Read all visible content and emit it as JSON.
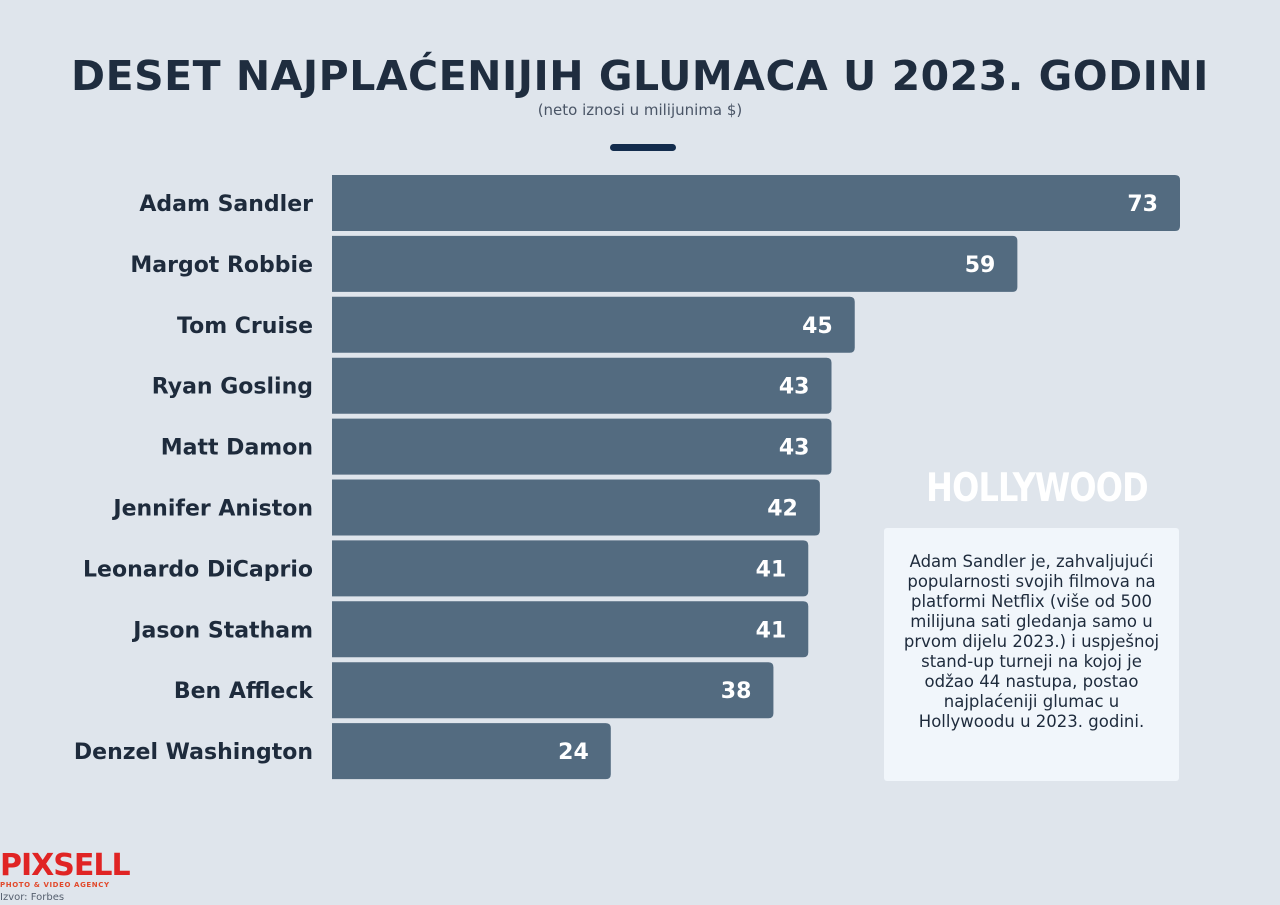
{
  "header": {
    "title": "DESET NAJPLAĆENIJIH GLUMACA U 2023. GODINI",
    "subtitle": "(neto iznosi u milijunima $)"
  },
  "chart_data": {
    "type": "bar",
    "orientation": "horizontal",
    "title": "DESET NAJPLAĆENIJIH GLUMACA U 2023. GODINI",
    "subtitle": "(neto iznosi u milijunima $)",
    "categories": [
      "Adam Sandler",
      "Margot Robbie",
      "Tom Cruise",
      "Ryan Gosling",
      "Matt Damon",
      "Jennifer Aniston",
      "Leonardo DiCaprio",
      "Jason Statham",
      "Ben Affleck",
      "Denzel Washington"
    ],
    "values": [
      73,
      59,
      45,
      43,
      43,
      42,
      41,
      41,
      38,
      24
    ],
    "xlim": [
      0,
      73
    ],
    "grid": false,
    "data_labels": true,
    "bar_color": "#536b80"
  },
  "watermark": "HOLLYWOOD",
  "note": "Adam Sandler je, zahvaljujući popularnosti svojih filmova na platformi Netflix (više od 500 milijuna sati gledanja samo u prvom dijelu 2023.) i uspješnoj stand-up turneji na kojoj je odžao 44 nastupa, postao najplaćeniji glumac u Hollywoodu u 2023. godini.",
  "branding": {
    "logo": "PIXSELL",
    "tagline": "PHOTO & VIDEO AGENCY",
    "source": "Izvor: Forbes"
  },
  "colors": {
    "background": "#dfe5ec",
    "bar": "#536b80",
    "title": "#1f2d3f",
    "accent": "#132c4d",
    "logo": "#e02424"
  }
}
